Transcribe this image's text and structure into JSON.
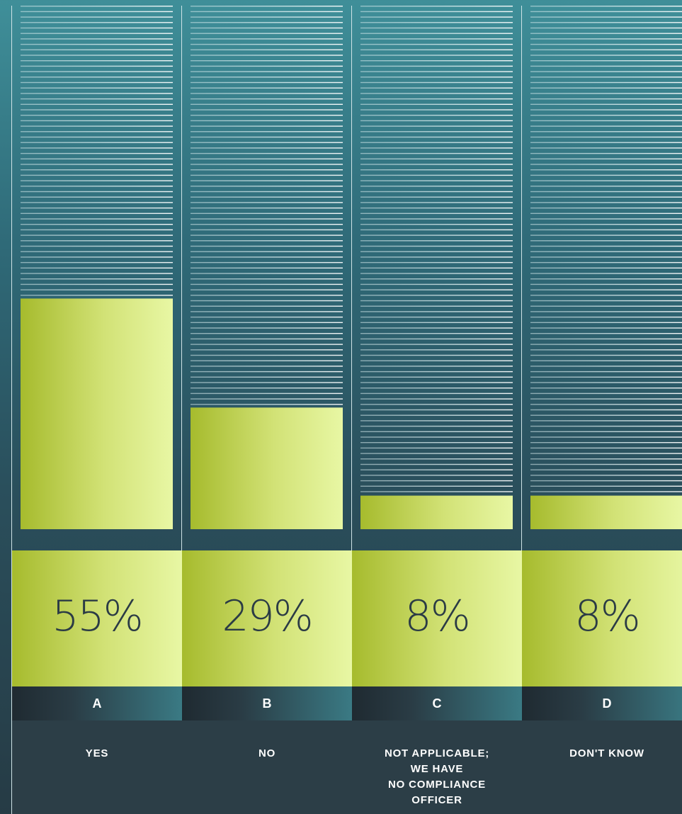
{
  "chart_data": {
    "type": "bar",
    "categories": [
      "A",
      "B",
      "C",
      "D"
    ],
    "labels": [
      "YES",
      "NO",
      "NOT APPLICABLE;\nWE HAVE\nNO COMPLIANCE\nOFFICER",
      "DON'T KNOW"
    ],
    "values": [
      55,
      29,
      8,
      8
    ],
    "value_labels": [
      "55%",
      "29%",
      "8%",
      "8%"
    ],
    "unit": "%",
    "ylim": [
      0,
      100
    ],
    "grid": true,
    "colors": {
      "bar_start": "#a6bb2d",
      "bar_end": "#e8f7a4",
      "background": "#2f6a78",
      "text_dark": "#2b3b45",
      "text_light": "#ffffff"
    }
  }
}
